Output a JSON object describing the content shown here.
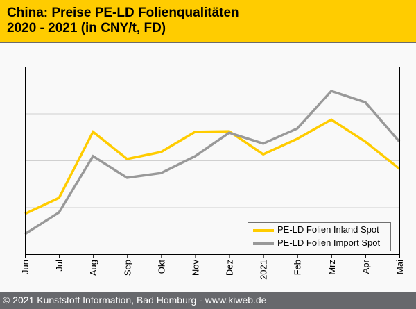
{
  "header": {
    "title_line1": "China: Preise PE-LD Folienqualitäten",
    "title_line2": "2020 - 2021 (in CNY/t, FD)",
    "background_color": "#ffcc00"
  },
  "footer": {
    "text": "© 2021 Kunststoff Information, Bad Homburg - www.kiweb.de",
    "background_color": "#67686c"
  },
  "chart_data": {
    "type": "line",
    "title": "China: Preise PE-LD Folienqualitäten 2020 - 2021 (in CNY/t, FD)",
    "xlabel": "",
    "ylabel": "",
    "y_unit_note": "No y-axis tick labels shown; values expressed in gridline units (0 = bottom axis, 4 = top of plot)",
    "ylim": [
      0,
      4
    ],
    "grid": true,
    "legend_position": "bottom-right",
    "categories": [
      "Jun",
      "Jul",
      "Aug",
      "Sep",
      "Okt",
      "Nov",
      "Dez",
      "2021",
      "Feb",
      "Mrz",
      "Apr",
      "Mai"
    ],
    "series": [
      {
        "name": "PE-LD Folien Inland Spot",
        "color": "#ffcc00",
        "values": [
          0.86,
          1.2,
          2.61,
          2.03,
          2.18,
          2.61,
          2.62,
          2.13,
          2.46,
          2.87,
          2.4,
          1.82
        ]
      },
      {
        "name": "PE-LD Folien Import Spot",
        "color": "#999999",
        "values": [
          0.43,
          0.89,
          2.09,
          1.63,
          1.73,
          2.09,
          2.59,
          2.36,
          2.68,
          3.48,
          3.24,
          2.4
        ]
      }
    ]
  }
}
